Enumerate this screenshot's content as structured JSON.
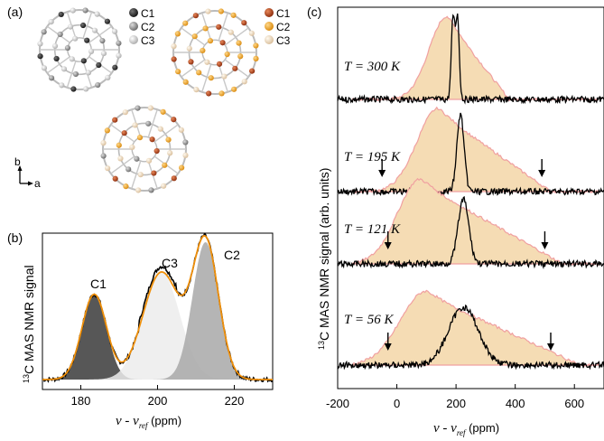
{
  "panel_a": {
    "label": "(a)",
    "legend_left": [
      {
        "name": "C1",
        "color": "#1a1a1a"
      },
      {
        "name": "C2",
        "color": "#7a7a7a"
      },
      {
        "name": "C3",
        "color": "#c8c8c8"
      }
    ],
    "legend_right": [
      {
        "name": "C1",
        "color": "#b5451b"
      },
      {
        "name": "C2",
        "color": "#f0a81e"
      },
      {
        "name": "C3",
        "color": "#f3dcb8"
      }
    ],
    "axis_b": "b",
    "axis_a": "a"
  },
  "panel_b": {
    "label": "(b)",
    "peak_labels": [
      "C1",
      "C3",
      "C2"
    ]
  },
  "panel_c": {
    "label": "(c)",
    "temperatures": [
      "T = 300 K",
      "T = 195 K",
      "T = 121 K",
      "T = 56 K"
    ]
  },
  "chart_data": [
    {
      "type": "line",
      "panel": "(b)",
      "ylabel": "13C MAS NMR signal",
      "xlabel": "ν - ν_ref (ppm)",
      "xlim": [
        170,
        230
      ],
      "xticks": [
        180,
        200,
        220
      ],
      "peaks": [
        {
          "name": "C1",
          "center": 183.5,
          "width": 3.2,
          "amplitude": 0.62,
          "fill": "#3a3a3a"
        },
        {
          "name": "C3",
          "center": 201.0,
          "width": 4.8,
          "amplitude": 0.78,
          "fill": "#ececec"
        },
        {
          "name": "C2",
          "center": 212.5,
          "width": 3.4,
          "amplitude": 1.0,
          "fill": "#a8a8a8"
        }
      ],
      "colors": {
        "experiment": "#000000",
        "fit": "#f0900a"
      }
    },
    {
      "type": "line",
      "panel": "(c)",
      "ylabel": "13C MAS NMR signal (arb. units)",
      "xlabel": "ν - ν_ref (ppm)",
      "xlim": [
        -200,
        700
      ],
      "xticks": [
        -200,
        0,
        200,
        400,
        600
      ],
      "series": [
        {
          "temperature_K": 300,
          "narrow_peaks_ppm": [
            190,
            205
          ],
          "arrows_ppm": []
        },
        {
          "temperature_K": 195,
          "narrow_peaks_ppm": [
            215
          ],
          "arrows_ppm": [
            -50,
            490
          ]
        },
        {
          "temperature_K": 121,
          "narrow_peaks_ppm": [
            225
          ],
          "arrows_ppm": [
            -30,
            500
          ]
        },
        {
          "temperature_K": 56,
          "narrow_peaks_ppm": [
            225
          ],
          "arrows_ppm": [
            -30,
            520
          ]
        }
      ],
      "colors": {
        "broad_fill": "#f5dcb4",
        "broad_edge": "#f0a0a0",
        "signal": "#000000"
      }
    }
  ]
}
